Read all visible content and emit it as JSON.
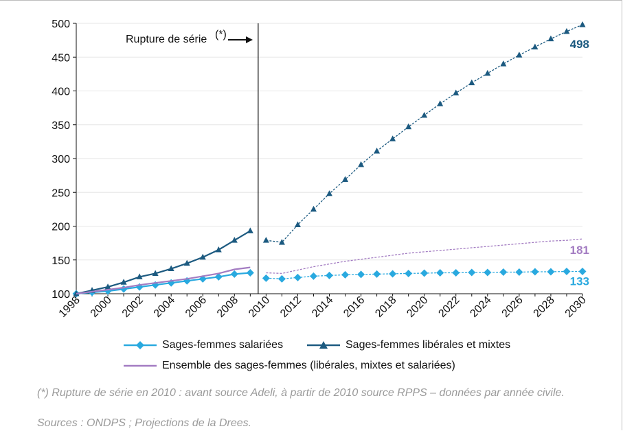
{
  "chart_data": {
    "type": "line",
    "annotation": "Rupture de série",
    "annotation_mark": "(*)",
    "break_x": 2009.5,
    "xlim": [
      1998,
      2030
    ],
    "ylim": [
      100,
      500
    ],
    "yticks": [
      100,
      150,
      200,
      250,
      300,
      350,
      400,
      450,
      500
    ],
    "xticks": [
      "1998",
      "2000",
      "2002",
      "2004",
      "2006",
      "2008",
      "2010",
      "2012",
      "2014",
      "2016",
      "2018",
      "2020",
      "2022",
      "2024",
      "2026",
      "2028",
      "2030"
    ],
    "series": [
      {
        "name": "Sages-femmes salariées",
        "color": "#29a9df",
        "marker": "diamond",
        "observed": {
          "x": [
            1998,
            1999,
            2000,
            2001,
            2002,
            2003,
            2004,
            2005,
            2006,
            2007,
            2008,
            2009
          ],
          "y": [
            100,
            102,
            104,
            107,
            110,
            113,
            116,
            119,
            122,
            125,
            129,
            131
          ]
        },
        "projected": {
          "x": [
            2010,
            2011,
            2012,
            2013,
            2014,
            2015,
            2016,
            2017,
            2018,
            2019,
            2020,
            2021,
            2022,
            2023,
            2024,
            2025,
            2026,
            2027,
            2028,
            2029,
            2030
          ],
          "y": [
            123,
            122,
            124,
            126,
            127,
            128,
            128.5,
            129,
            129.5,
            130,
            130.5,
            131,
            131,
            131.5,
            131.5,
            132,
            132,
            132.5,
            132.5,
            133,
            133
          ]
        },
        "end_label": "133"
      },
      {
        "name": "Sages-femmes libérales et mixtes",
        "color": "#1c5a80",
        "marker": "triangle",
        "observed": {
          "x": [
            1998,
            1999,
            2000,
            2001,
            2002,
            2003,
            2004,
            2005,
            2006,
            2007,
            2008,
            2009
          ],
          "y": [
            100,
            105,
            110,
            117,
            125,
            130,
            137,
            145,
            154,
            165,
            179,
            193
          ]
        },
        "projected": {
          "x": [
            2010,
            2011,
            2012,
            2013,
            2014,
            2015,
            2016,
            2017,
            2018,
            2019,
            2020,
            2021,
            2022,
            2023,
            2024,
            2025,
            2026,
            2027,
            2028,
            2029,
            2030
          ],
          "y": [
            179,
            176,
            202,
            225,
            248,
            269,
            291,
            311,
            329,
            347,
            364,
            381,
            397,
            412,
            426,
            440,
            453,
            465,
            477,
            488,
            498
          ]
        },
        "end_label": "498"
      },
      {
        "name": "Ensemble des sages-femmes (libérales, mixtes et salariées)",
        "color": "#a37cc2",
        "marker": "none",
        "observed": {
          "x": [
            1998,
            1999,
            2000,
            2001,
            2002,
            2003,
            2004,
            2005,
            2006,
            2007,
            2008,
            2009
          ],
          "y": [
            100,
            103,
            106,
            109,
            113,
            116,
            119,
            122,
            126,
            130,
            136,
            139
          ]
        },
        "projected": {
          "x": [
            2010,
            2011,
            2012,
            2013,
            2014,
            2015,
            2016,
            2017,
            2018,
            2019,
            2020,
            2021,
            2022,
            2023,
            2024,
            2025,
            2026,
            2027,
            2028,
            2029,
            2030
          ],
          "y": [
            131,
            130,
            135,
            140,
            144,
            148,
            151,
            154,
            157,
            160,
            162,
            164,
            166,
            168,
            170,
            172,
            174,
            176,
            178,
            179,
            181
          ]
        },
        "end_label": "181"
      }
    ]
  },
  "legend": {
    "salariees": "Sages-femmes salariées",
    "liberales": "Sages-femmes libérales et mixtes",
    "ensemble": "Ensemble des sages-femmes (libérales, mixtes et salariées)"
  },
  "notes": {
    "rupture": "(*) Rupture de série en 2010 : avant source Adeli, à partir de 2010 source RPPS – données par année civile.",
    "sources": "Sources : ONDPS ; Projections de la Drees."
  }
}
